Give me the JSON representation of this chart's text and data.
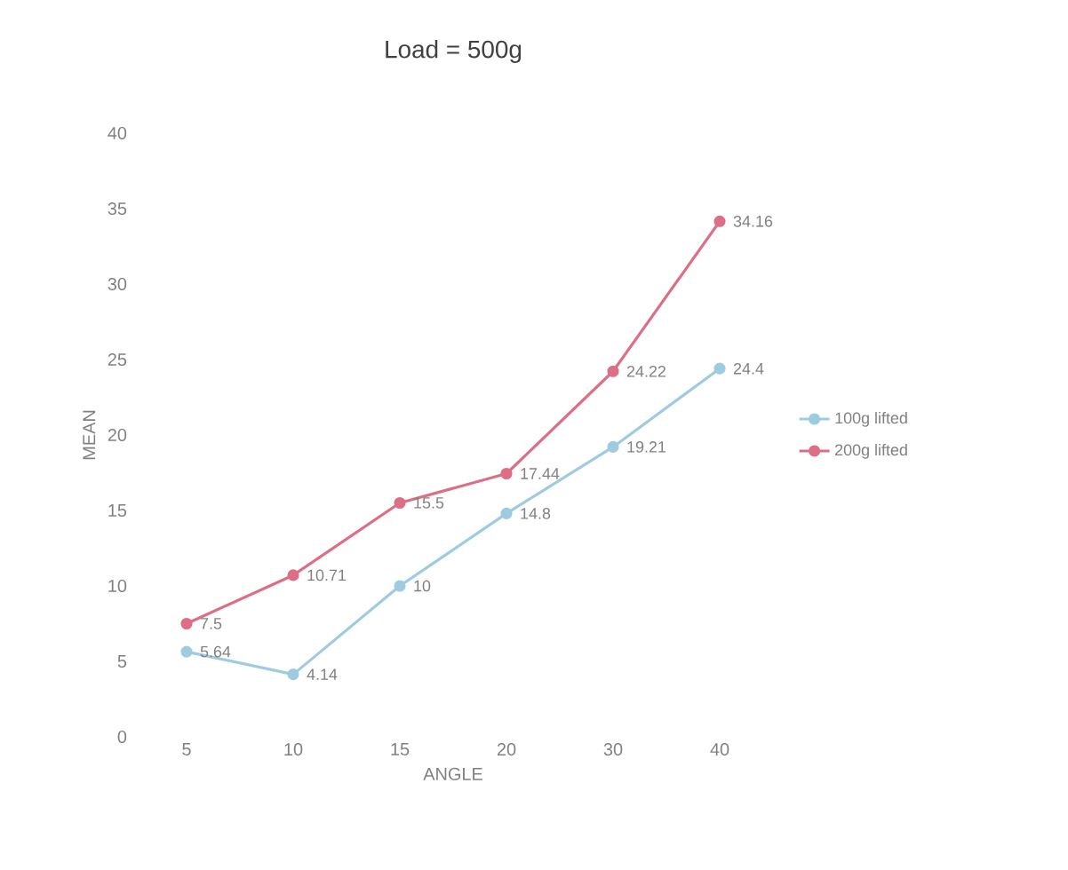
{
  "chart_data": {
    "type": "line",
    "title": "Load = 500g",
    "xlabel": "ANGLE",
    "ylabel": "MEAN",
    "categories": [
      "5",
      "10",
      "15",
      "20",
      "30",
      "40"
    ],
    "series": [
      {
        "name": "100g lifted",
        "color": "#9fcbe0",
        "values": [
          5.64,
          4.14,
          10,
          14.8,
          19.21,
          24.4
        ]
      },
      {
        "name": "200g lifted",
        "color": "#dc6f86",
        "values": [
          7.5,
          10.71,
          15.5,
          17.44,
          24.22,
          34.16
        ]
      }
    ],
    "ylim": [
      0,
      40
    ],
    "yticks": [
      0,
      5,
      10,
      15,
      20,
      25,
      30,
      35,
      40
    ],
    "data_labels": true,
    "legend": "right",
    "marker": "circle",
    "line_style": "solid",
    "grid": false
  }
}
